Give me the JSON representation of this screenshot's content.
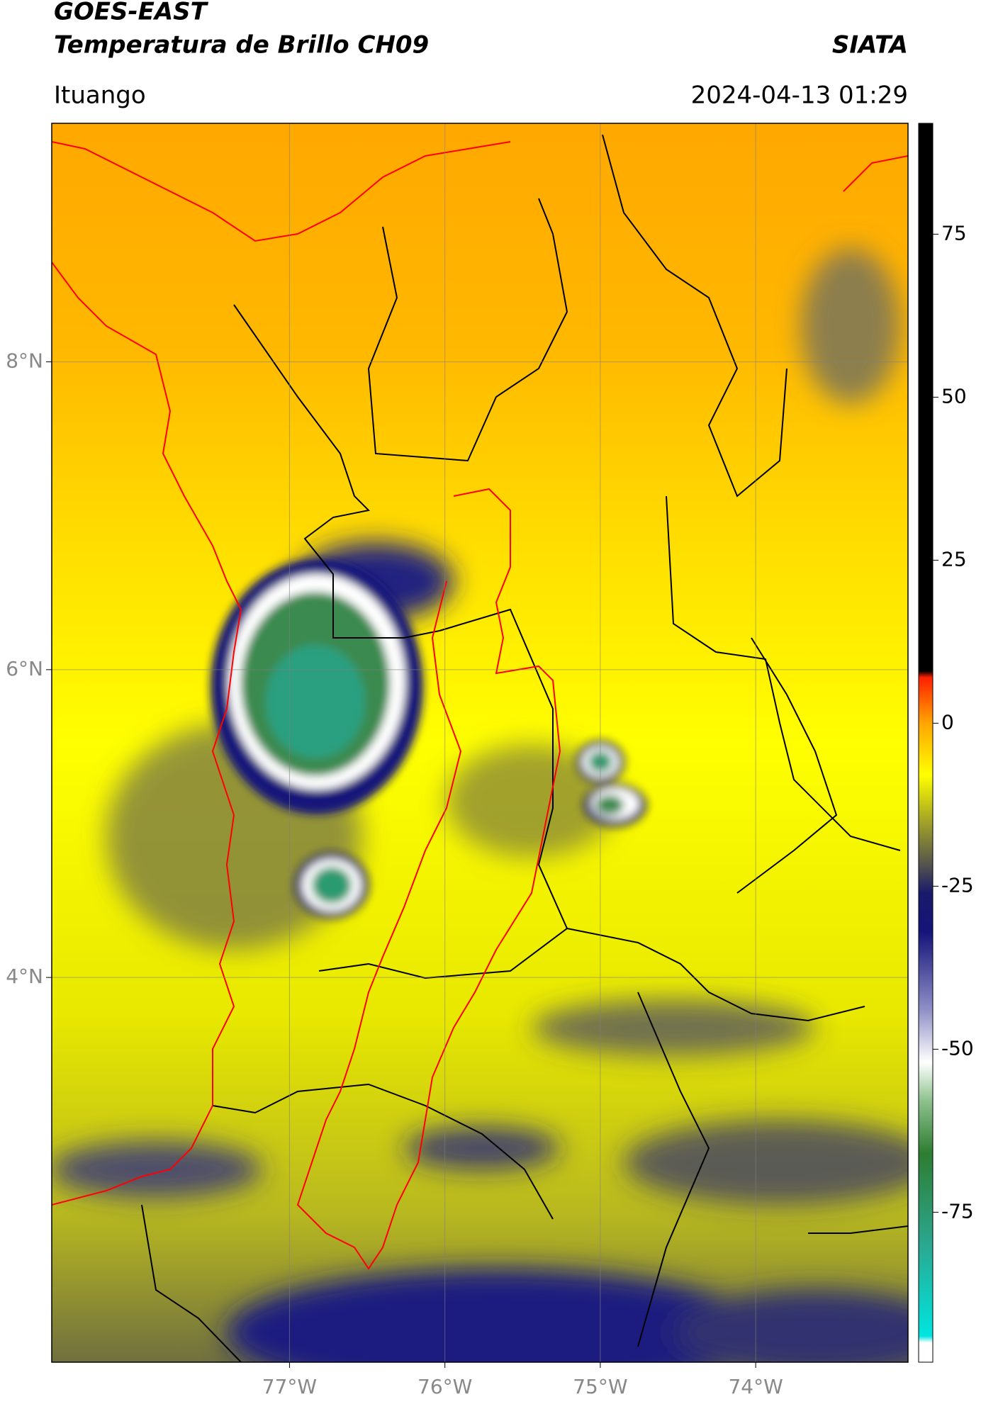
{
  "map": {
    "satellite": "GOES-EAST",
    "product": "Temperatura de Brillo CH09",
    "source": "SIATA",
    "region": "Ituango",
    "datetime": "2024-04-13 01:29",
    "lat_range": [
      1.5,
      9.55
    ],
    "lon_range": [
      -78.53,
      -73.02
    ],
    "lat_ticks": [
      {
        "value": 8,
        "label": "8°N"
      },
      {
        "value": 6,
        "label": "6°N"
      },
      {
        "value": 4,
        "label": "4°N"
      }
    ],
    "lon_ticks": [
      {
        "value": -77,
        "label": "77°W"
      },
      {
        "value": -76,
        "label": "76°W"
      },
      {
        "value": -75,
        "label": "75°W"
      },
      {
        "value": -74,
        "label": "74°W"
      }
    ],
    "grid": true,
    "colorbar": {
      "range": [
        -98,
        92
      ],
      "ticks": [
        75,
        50,
        25,
        0,
        -25,
        -50,
        -75
      ],
      "stops": [
        {
          "value": -98,
          "color": "#ffffff"
        },
        {
          "value": -95,
          "color": "#ffffff"
        },
        {
          "value": -94,
          "color": "#00e5e0"
        },
        {
          "value": -80,
          "color": "#2aa890"
        },
        {
          "value": -66,
          "color": "#2e7d32"
        },
        {
          "value": -58,
          "color": "#8cc08c"
        },
        {
          "value": -52,
          "color": "#ffffff"
        },
        {
          "value": -44,
          "color": "#9090c8"
        },
        {
          "value": -32,
          "color": "#14147a"
        },
        {
          "value": -26,
          "color": "#1a1a6a"
        },
        {
          "value": -22,
          "color": "#505050"
        },
        {
          "value": -14,
          "color": "#b0b020"
        },
        {
          "value": -8,
          "color": "#ffff00"
        },
        {
          "value": 0,
          "color": "#ffa500"
        },
        {
          "value": 7,
          "color": "#ff2000"
        },
        {
          "value": 8,
          "color": "#000000"
        },
        {
          "value": 92,
          "color": "#000000"
        }
      ]
    }
  }
}
